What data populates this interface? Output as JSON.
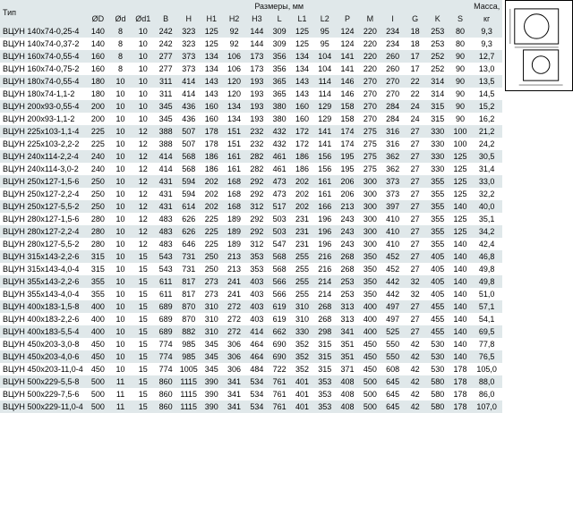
{
  "headers": {
    "type": "Тип",
    "dims_group": "Размеры, мм",
    "mass": "Масса,",
    "mass_unit": "кг",
    "cols": [
      "ØD",
      "Ød",
      "Ød1",
      "B",
      "H",
      "H1",
      "H2",
      "H3",
      "L",
      "L1",
      "L2",
      "P",
      "M",
      "I",
      "G",
      "K",
      "S"
    ]
  },
  "rows": [
    {
      "t": "ВЦУН 140х74-0,25-4",
      "v": [
        140,
        8,
        10,
        242,
        323,
        125,
        92,
        144,
        309,
        125,
        95,
        124,
        220,
        234,
        18,
        253,
        80
      ],
      "m": "9,3"
    },
    {
      "t": "ВЦУН 140х74-0,37-2",
      "v": [
        140,
        8,
        10,
        242,
        323,
        125,
        92,
        144,
        309,
        125,
        95,
        124,
        220,
        234,
        18,
        253,
        80
      ],
      "m": "9,3"
    },
    {
      "t": "ВЦУН 160х74-0,55-4",
      "v": [
        160,
        8,
        10,
        277,
        373,
        134,
        106,
        173,
        356,
        134,
        104,
        141,
        220,
        260,
        17,
        252,
        90
      ],
      "m": "12,7"
    },
    {
      "t": "ВЦУН 160х74-0,75-2",
      "v": [
        160,
        8,
        10,
        277,
        373,
        134,
        106,
        173,
        356,
        134,
        104,
        141,
        220,
        260,
        17,
        252,
        90
      ],
      "m": "13,0"
    },
    {
      "t": "ВЦУН 180х74-0,55-4",
      "v": [
        180,
        10,
        10,
        311,
        414,
        143,
        120,
        193,
        365,
        143,
        114,
        146,
        270,
        270,
        22,
        314,
        90
      ],
      "m": "13,5"
    },
    {
      "t": "ВЦУН 180х74-1,1-2",
      "v": [
        180,
        10,
        10,
        311,
        414,
        143,
        120,
        193,
        365,
        143,
        114,
        146,
        270,
        270,
        22,
        314,
        90
      ],
      "m": "14,5"
    },
    {
      "t": "ВЦУН 200х93-0,55-4",
      "v": [
        200,
        10,
        10,
        345,
        436,
        160,
        134,
        193,
        380,
        160,
        129,
        158,
        270,
        284,
        24,
        315,
        90
      ],
      "m": "15,2"
    },
    {
      "t": "ВЦУН 200х93-1,1-2",
      "v": [
        200,
        10,
        10,
        345,
        436,
        160,
        134,
        193,
        380,
        160,
        129,
        158,
        270,
        284,
        24,
        315,
        90
      ],
      "m": "16,2"
    },
    {
      "t": "ВЦУН 225х103-1,1-4",
      "v": [
        225,
        10,
        12,
        388,
        507,
        178,
        151,
        232,
        432,
        172,
        141,
        174,
        275,
        316,
        27,
        330,
        100
      ],
      "m": "21,2"
    },
    {
      "t": "ВЦУН 225х103-2,2-2",
      "v": [
        225,
        10,
        12,
        388,
        507,
        178,
        151,
        232,
        432,
        172,
        141,
        174,
        275,
        316,
        27,
        330,
        100
      ],
      "m": "24,2"
    },
    {
      "t": "ВЦУН 240х114-2,2-4",
      "v": [
        240,
        10,
        12,
        414,
        568,
        186,
        161,
        282,
        461,
        186,
        156,
        195,
        275,
        362,
        27,
        330,
        125
      ],
      "m": "30,5"
    },
    {
      "t": "ВЦУН 240х114-3,0-2",
      "v": [
        240,
        10,
        12,
        414,
        568,
        186,
        161,
        282,
        461,
        186,
        156,
        195,
        275,
        362,
        27,
        330,
        125
      ],
      "m": "31,4"
    },
    {
      "t": "ВЦУН 250х127-1,5-6",
      "v": [
        250,
        10,
        12,
        431,
        594,
        202,
        168,
        292,
        473,
        202,
        161,
        206,
        300,
        373,
        27,
        355,
        125
      ],
      "m": "33,0"
    },
    {
      "t": "ВЦУН 250х127-2,2-4",
      "v": [
        250,
        10,
        12,
        431,
        594,
        202,
        168,
        292,
        473,
        202,
        161,
        206,
        300,
        373,
        27,
        355,
        125
      ],
      "m": "32,2"
    },
    {
      "t": "ВЦУН 250х127-5,5-2",
      "v": [
        250,
        10,
        12,
        431,
        614,
        202,
        168,
        312,
        517,
        202,
        166,
        213,
        300,
        397,
        27,
        355,
        140
      ],
      "m": "40,0"
    },
    {
      "t": "ВЦУН 280х127-1,5-6",
      "v": [
        280,
        10,
        12,
        483,
        626,
        225,
        189,
        292,
        503,
        231,
        196,
        243,
        300,
        410,
        27,
        355,
        125
      ],
      "m": "35,1"
    },
    {
      "t": "ВЦУН 280х127-2,2-4",
      "v": [
        280,
        10,
        12,
        483,
        626,
        225,
        189,
        292,
        503,
        231,
        196,
        243,
        300,
        410,
        27,
        355,
        125
      ],
      "m": "34,2"
    },
    {
      "t": "ВЦУН 280х127-5,5-2",
      "v": [
        280,
        10,
        12,
        483,
        646,
        225,
        189,
        312,
        547,
        231,
        196,
        243,
        300,
        410,
        27,
        355,
        140
      ],
      "m": "42,4"
    },
    {
      "t": "ВЦУН 315х143-2,2-6",
      "v": [
        315,
        10,
        15,
        543,
        731,
        250,
        213,
        353,
        568,
        255,
        216,
        268,
        350,
        452,
        27,
        405,
        140
      ],
      "m": "46,8"
    },
    {
      "t": "ВЦУН 315х143-4,0-4",
      "v": [
        315,
        10,
        15,
        543,
        731,
        250,
        213,
        353,
        568,
        255,
        216,
        268,
        350,
        452,
        27,
        405,
        140
      ],
      "m": "49,8"
    },
    {
      "t": "ВЦУН 355х143-2,2-6",
      "v": [
        355,
        10,
        15,
        611,
        817,
        273,
        241,
        403,
        566,
        255,
        214,
        253,
        350,
        442,
        32,
        405,
        140
      ],
      "m": "49,8"
    },
    {
      "t": "ВЦУН 355х143-4,0-4",
      "v": [
        355,
        10,
        15,
        611,
        817,
        273,
        241,
        403,
        566,
        255,
        214,
        253,
        350,
        442,
        32,
        405,
        140
      ],
      "m": "51,0"
    },
    {
      "t": "ВЦУН 400х183-1,5-8",
      "v": [
        400,
        10,
        15,
        689,
        870,
        310,
        272,
        403,
        619,
        310,
        268,
        313,
        400,
        497,
        27,
        455,
        140
      ],
      "m": "57,1"
    },
    {
      "t": "ВЦУН 400х183-2,2-6",
      "v": [
        400,
        10,
        15,
        689,
        870,
        310,
        272,
        403,
        619,
        310,
        268,
        313,
        400,
        497,
        27,
        455,
        140
      ],
      "m": "54,1"
    },
    {
      "t": "ВЦУН 400х183-5,5-4",
      "v": [
        400,
        10,
        15,
        689,
        882,
        310,
        272,
        414,
        662,
        330,
        298,
        341,
        400,
        525,
        27,
        455,
        140
      ],
      "m": "69,5"
    },
    {
      "t": "ВЦУН 450х203-3,0-8",
      "v": [
        450,
        10,
        15,
        774,
        985,
        345,
        306,
        464,
        690,
        352,
        315,
        351,
        450,
        550,
        42,
        530,
        140
      ],
      "m": "77,8"
    },
    {
      "t": "ВЦУН 450х203-4,0-6",
      "v": [
        450,
        10,
        15,
        774,
        985,
        345,
        306,
        464,
        690,
        352,
        315,
        351,
        450,
        550,
        42,
        530,
        140
      ],
      "m": "76,5"
    },
    {
      "t": "ВЦУН 450х203-11,0-4",
      "v": [
        450,
        10,
        15,
        774,
        1005,
        345,
        306,
        484,
        722,
        352,
        315,
        371,
        450,
        608,
        42,
        530,
        178
      ],
      "m": "105,0"
    },
    {
      "t": "ВЦУН 500х229-5,5-8",
      "v": [
        500,
        11,
        15,
        860,
        1115,
        390,
        341,
        534,
        761,
        401,
        353,
        408,
        500,
        645,
        42,
        580,
        178
      ],
      "m": "88,0"
    },
    {
      "t": "ВЦУН 500х229-7,5-6",
      "v": [
        500,
        11,
        15,
        860,
        1115,
        390,
        341,
        534,
        761,
        401,
        353,
        408,
        500,
        645,
        42,
        580,
        178
      ],
      "m": "86,0"
    },
    {
      "t": "ВЦУН 500х229-11,0-4",
      "v": [
        500,
        11,
        15,
        860,
        1115,
        390,
        341,
        534,
        761,
        401,
        353,
        408,
        500,
        645,
        42,
        580,
        178
      ],
      "m": "107,0"
    }
  ],
  "colors": {
    "stripe": "#e0e8ea",
    "bg": "#ffffff"
  }
}
